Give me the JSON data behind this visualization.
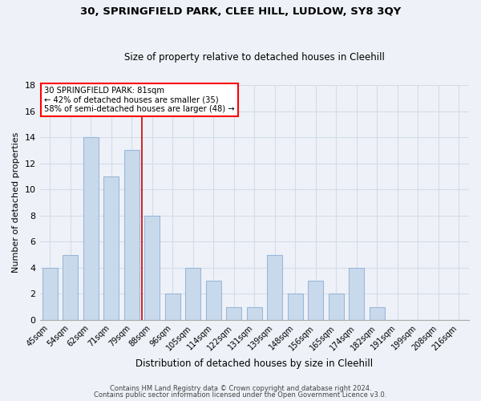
{
  "title1": "30, SPRINGFIELD PARK, CLEE HILL, LUDLOW, SY8 3QY",
  "title2": "Size of property relative to detached houses in Cleehill",
  "xlabel": "Distribution of detached houses by size in Cleehill",
  "ylabel": "Number of detached properties",
  "categories": [
    "45sqm",
    "54sqm",
    "62sqm",
    "71sqm",
    "79sqm",
    "88sqm",
    "96sqm",
    "105sqm",
    "114sqm",
    "122sqm",
    "131sqm",
    "139sqm",
    "148sqm",
    "156sqm",
    "165sqm",
    "174sqm",
    "182sqm",
    "191sqm",
    "199sqm",
    "208sqm",
    "216sqm"
  ],
  "values": [
    4,
    5,
    14,
    11,
    13,
    8,
    2,
    4,
    3,
    1,
    1,
    5,
    2,
    3,
    2,
    4,
    1,
    0,
    0,
    0,
    0
  ],
  "bar_color": "#c9d9ec",
  "bar_edge_color": "#9ab8d8",
  "vline_color": "#cc0000",
  "annotation_line1": "30 SPRINGFIELD PARK: 81sqm",
  "annotation_line2": "← 42% of detached houses are smaller (35)",
  "annotation_line3": "58% of semi-detached houses are larger (48) →",
  "ylim": [
    0,
    18
  ],
  "yticks": [
    0,
    2,
    4,
    6,
    8,
    10,
    12,
    14,
    16,
    18
  ],
  "footer1": "Contains HM Land Registry data © Crown copyright and database right 2024.",
  "footer2": "Contains public sector information licensed under the Open Government Licence v3.0.",
  "grid_color": "#d4dce8",
  "background_color": "#eef2f8"
}
